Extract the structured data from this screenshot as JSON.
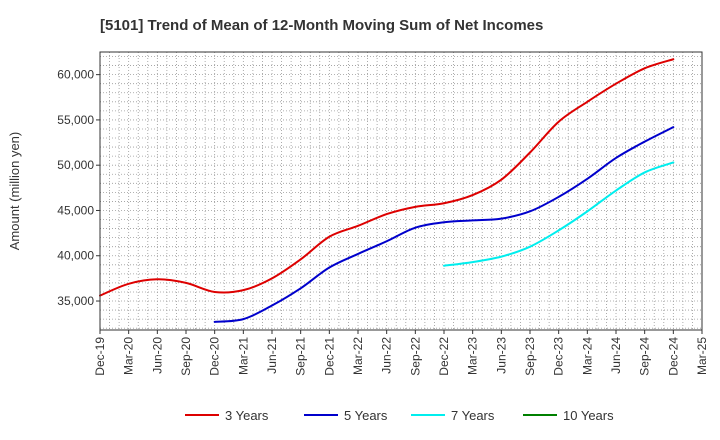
{
  "chart_data": {
    "type": "line",
    "title": "[5101]  Trend of Mean of 12-Month Moving Sum of Net Incomes",
    "ylabel": "Amount (million yen)",
    "xlabel": "",
    "ylim": [
      31800,
      62500
    ],
    "yticks": [
      35000,
      40000,
      45000,
      50000,
      55000,
      60000
    ],
    "ytick_labels": [
      "35,000",
      "40,000",
      "45,000",
      "50,000",
      "55,000",
      "60,000"
    ],
    "categories": [
      "Dec-19",
      "Mar-20",
      "Jun-20",
      "Sep-20",
      "Dec-20",
      "Mar-21",
      "Jun-21",
      "Sep-21",
      "Dec-21",
      "Mar-22",
      "Jun-22",
      "Sep-22",
      "Dec-22",
      "Mar-23",
      "Jun-23",
      "Sep-23",
      "Dec-23",
      "Mar-24",
      "Jun-24",
      "Sep-24",
      "Dec-24",
      "Mar-25"
    ],
    "grid": true,
    "legend_position": "bottom",
    "series": [
      {
        "name": "3 Years",
        "color": "#dd0000",
        "values": [
          35600,
          36900,
          37400,
          37000,
          36000,
          36200,
          37500,
          39600,
          42100,
          43300,
          44600,
          45400,
          45800,
          46700,
          48400,
          51400,
          54800,
          57000,
          59000,
          60700,
          61700,
          null
        ]
      },
      {
        "name": "5 Years",
        "color": "#0000cc",
        "values": [
          null,
          null,
          null,
          null,
          32700,
          33000,
          34500,
          36400,
          38700,
          40200,
          41600,
          43100,
          43700,
          43900,
          44100,
          44900,
          46500,
          48500,
          50800,
          52600,
          54200,
          null
        ]
      },
      {
        "name": "7 Years",
        "color": "#00eeee",
        "values": [
          null,
          null,
          null,
          null,
          null,
          null,
          null,
          null,
          null,
          null,
          null,
          null,
          38900,
          39300,
          39900,
          41000,
          42800,
          44900,
          47200,
          49200,
          50300,
          null
        ]
      },
      {
        "name": "10 Years",
        "color": "#008000",
        "values": [
          null,
          null,
          null,
          null,
          null,
          null,
          null,
          null,
          null,
          null,
          null,
          null,
          null,
          null,
          null,
          null,
          null,
          null,
          null,
          null,
          null,
          null
        ]
      }
    ]
  }
}
